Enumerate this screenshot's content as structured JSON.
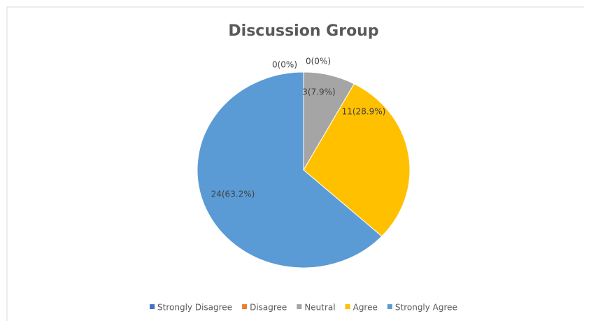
{
  "chart_data": {
    "type": "pie",
    "title": "Discussion  Group",
    "categories": [
      "Strongly Disagree",
      "Disagree",
      "Neutral",
      "Agree",
      "Strongly Agree"
    ],
    "values": [
      0,
      0,
      3,
      11,
      24
    ],
    "value_labels": [
      "0(0%)",
      "0(0%)",
      "3(7.9%)",
      "11(28.9%)",
      "24(63.2%)"
    ],
    "colors": [
      "#4472c4",
      "#ed7d31",
      "#a5a5a5",
      "#ffc000",
      "#5b9bd5"
    ],
    "legend": "bottom"
  }
}
